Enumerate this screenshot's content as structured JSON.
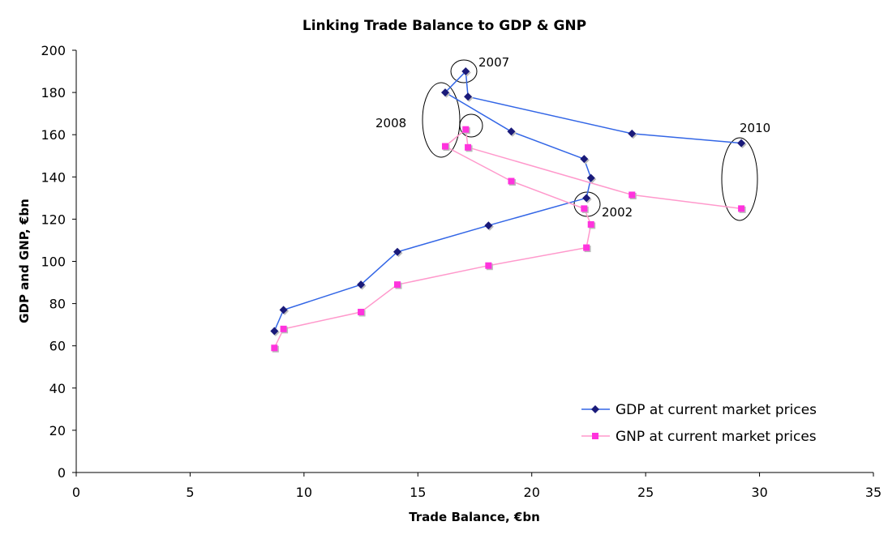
{
  "chart_data": {
    "type": "scatter",
    "title": "Linking Trade Balance to GDP & GNP",
    "xlabel": "Trade Balance, €bn",
    "ylabel": "GDP and GNP, €bn",
    "xlim": [
      0,
      35
    ],
    "ylim": [
      0,
      200
    ],
    "xticks": [
      0,
      5,
      10,
      15,
      20,
      25,
      30,
      35
    ],
    "yticks": [
      0,
      20,
      40,
      60,
      80,
      100,
      120,
      140,
      160,
      180,
      200
    ],
    "grid": false,
    "legend_position": "bottom-right",
    "series": [
      {
        "name": "GDP at current market prices",
        "color": "#3366e6",
        "marker_color": "#1a1a7a",
        "marker": "diamond",
        "x": [
          8.7,
          9.1,
          12.5,
          14.1,
          18.1,
          22.4,
          22.6,
          22.3,
          19.1,
          16.2,
          17.1,
          17.2,
          24.4,
          29.2
        ],
        "y": [
          67,
          77,
          89,
          104.5,
          117,
          130,
          139.5,
          148.5,
          161.5,
          180,
          190,
          178,
          160.5,
          156
        ]
      },
      {
        "name": "GNP at current market prices",
        "color": "#ff99cc",
        "marker_color": "#ff33dd",
        "marker": "square",
        "x": [
          8.7,
          9.1,
          12.5,
          14.1,
          18.1,
          22.4,
          22.6,
          22.3,
          19.1,
          16.2,
          17.1,
          17.2,
          24.4,
          29.2
        ],
        "y": [
          59,
          68,
          76,
          89,
          98,
          106.5,
          117.5,
          125,
          138,
          154.5,
          162.5,
          154,
          131.5,
          125
        ]
      }
    ],
    "annotations": [
      {
        "text": "2007",
        "x": 17.1,
        "y": 190
      },
      {
        "text": "2008",
        "x": 16.2,
        "y": 167
      },
      {
        "text": "2010",
        "x": 29.2,
        "y": 140
      },
      {
        "text": "2002",
        "x": 22.4,
        "y": 128
      }
    ]
  }
}
